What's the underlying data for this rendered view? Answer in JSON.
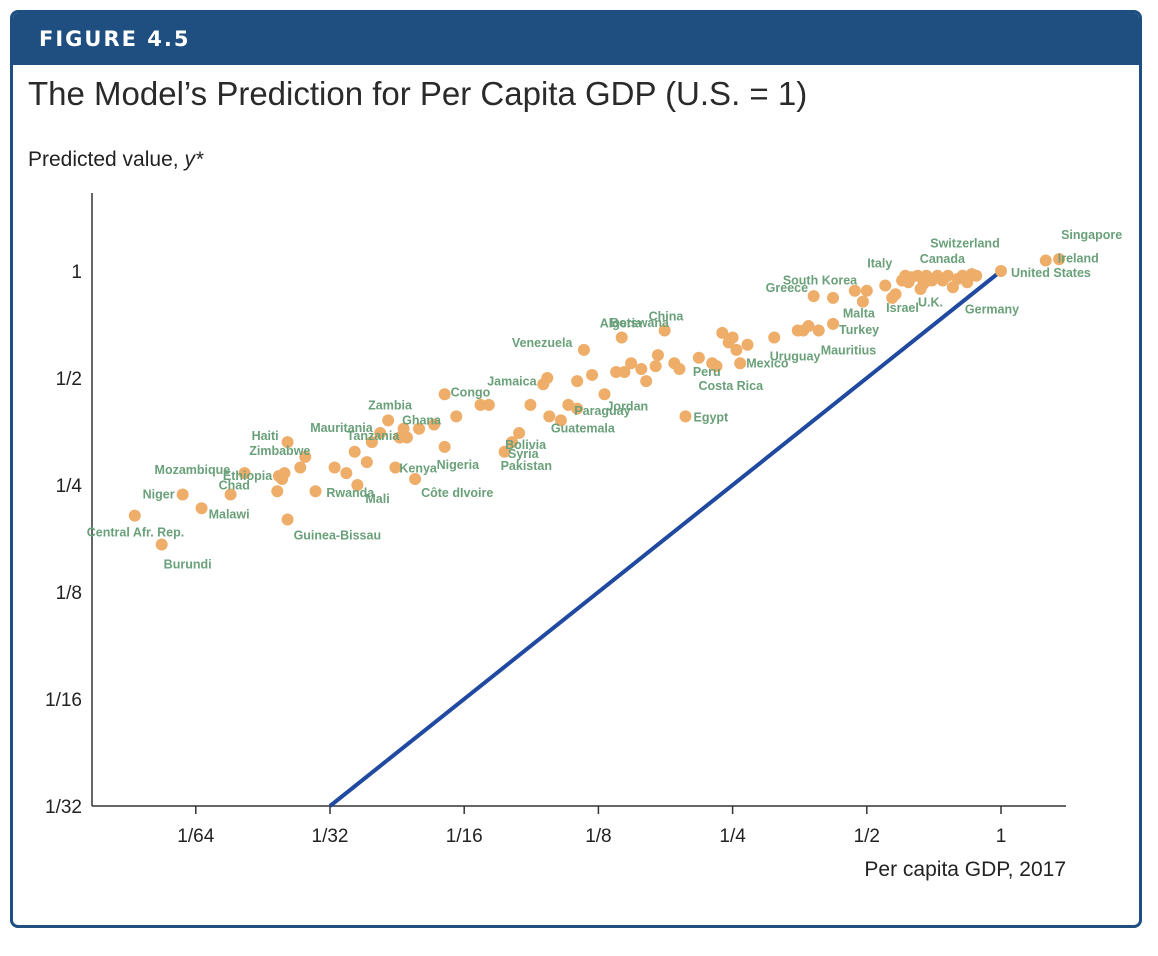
{
  "figure_label": "FIGURE 4.5",
  "colors": {
    "frame": "#1f4e80",
    "line": "#1f4aa0",
    "point": "#eead69",
    "label": "#6aa07a"
  },
  "chart_data": {
    "type": "scatter",
    "title": "The Model’s Prediction for Per Capita GDP (U.S. = 1)",
    "ylabel": "Predicted value, y*",
    "xlabel": "Per capita GDP, 2017",
    "scale": "log2",
    "xlim": [
      0.0085,
      1.4
    ],
    "ylim": [
      0.03125,
      1.6
    ],
    "x_ticks": [
      {
        "value": 0.015625,
        "label": "1/64"
      },
      {
        "value": 0.03125,
        "label": "1/32"
      },
      {
        "value": 0.0625,
        "label": "1/16"
      },
      {
        "value": 0.125,
        "label": "1/8"
      },
      {
        "value": 0.25,
        "label": "1/4"
      },
      {
        "value": 0.5,
        "label": "1/2"
      },
      {
        "value": 1,
        "label": "1"
      }
    ],
    "y_ticks": [
      {
        "value": 0.03125,
        "label": "1/32"
      },
      {
        "value": 0.0625,
        "label": "1/16"
      },
      {
        "value": 0.125,
        "label": "1/8"
      },
      {
        "value": 0.25,
        "label": "1/4"
      },
      {
        "value": 0.5,
        "label": "1/2"
      },
      {
        "value": 1,
        "label": "1"
      }
    ],
    "line": {
      "x": [
        0.03125,
        1
      ],
      "y": [
        0.03125,
        1
      ]
    },
    "points": [
      {
        "x": 1.35,
        "y": 1.08,
        "name": "Singapore"
      },
      {
        "x": 1.26,
        "y": 1.07,
        "name": "Ireland"
      },
      {
        "x": 1.0,
        "y": 1.0,
        "name": "United States"
      },
      {
        "x": 0.88,
        "y": 0.97,
        "name": "Switzerland"
      },
      {
        "x": 0.8,
        "y": 0.95,
        "name": "Canada"
      },
      {
        "x": 0.86,
        "y": 0.98,
        "name": ""
      },
      {
        "x": 0.84,
        "y": 0.93,
        "name": ""
      },
      {
        "x": 0.82,
        "y": 0.97,
        "name": ""
      },
      {
        "x": 0.78,
        "y": 0.9,
        "name": "Germany"
      },
      {
        "x": 0.76,
        "y": 0.97,
        "name": ""
      },
      {
        "x": 0.74,
        "y": 0.94,
        "name": ""
      },
      {
        "x": 0.72,
        "y": 0.97,
        "name": ""
      },
      {
        "x": 0.7,
        "y": 0.94,
        "name": "U.K."
      },
      {
        "x": 0.68,
        "y": 0.97,
        "name": ""
      },
      {
        "x": 0.67,
        "y": 0.92,
        "name": ""
      },
      {
        "x": 0.66,
        "y": 0.89,
        "name": ""
      },
      {
        "x": 0.65,
        "y": 0.97,
        "name": ""
      },
      {
        "x": 0.63,
        "y": 0.96,
        "name": ""
      },
      {
        "x": 0.62,
        "y": 0.93,
        "name": ""
      },
      {
        "x": 0.61,
        "y": 0.97,
        "name": "Italy"
      },
      {
        "x": 0.6,
        "y": 0.94,
        "name": ""
      },
      {
        "x": 0.58,
        "y": 0.86,
        "name": ""
      },
      {
        "x": 0.57,
        "y": 0.84,
        "name": "Israel"
      },
      {
        "x": 0.55,
        "y": 0.91,
        "name": ""
      },
      {
        "x": 0.5,
        "y": 0.88,
        "name": ""
      },
      {
        "x": 0.49,
        "y": 0.82,
        "name": "Malta"
      },
      {
        "x": 0.47,
        "y": 0.88,
        "name": "South Korea"
      },
      {
        "x": 0.42,
        "y": 0.84,
        "name": ""
      },
      {
        "x": 0.38,
        "y": 0.85,
        "name": "Greece"
      },
      {
        "x": 0.42,
        "y": 0.71,
        "name": "Turkey"
      },
      {
        "x": 0.39,
        "y": 0.68,
        "name": "Mauritius"
      },
      {
        "x": 0.37,
        "y": 0.7,
        "name": ""
      },
      {
        "x": 0.36,
        "y": 0.68,
        "name": ""
      },
      {
        "x": 0.35,
        "y": 0.68,
        "name": "Uruguay"
      },
      {
        "x": 0.31,
        "y": 0.65,
        "name": ""
      },
      {
        "x": 0.27,
        "y": 0.62,
        "name": ""
      },
      {
        "x": 0.26,
        "y": 0.55,
        "name": "Mexico"
      },
      {
        "x": 0.255,
        "y": 0.6,
        "name": ""
      },
      {
        "x": 0.25,
        "y": 0.65,
        "name": ""
      },
      {
        "x": 0.245,
        "y": 0.63,
        "name": ""
      },
      {
        "x": 0.237,
        "y": 0.67,
        "name": ""
      },
      {
        "x": 0.23,
        "y": 0.54,
        "name": "Costa Rica"
      },
      {
        "x": 0.225,
        "y": 0.55,
        "name": ""
      },
      {
        "x": 0.21,
        "y": 0.57,
        "name": "Peru"
      },
      {
        "x": 0.19,
        "y": 0.53,
        "name": ""
      },
      {
        "x": 0.185,
        "y": 0.55,
        "name": ""
      },
      {
        "x": 0.176,
        "y": 0.68,
        "name": "China"
      },
      {
        "x": 0.17,
        "y": 0.58,
        "name": "Botswana"
      },
      {
        "x": 0.168,
        "y": 0.54,
        "name": ""
      },
      {
        "x": 0.16,
        "y": 0.49,
        "name": ""
      },
      {
        "x": 0.156,
        "y": 0.53,
        "name": ""
      },
      {
        "x": 0.148,
        "y": 0.55,
        "name": ""
      },
      {
        "x": 0.143,
        "y": 0.52,
        "name": ""
      },
      {
        "x": 0.137,
        "y": 0.52,
        "name": ""
      },
      {
        "x": 0.141,
        "y": 0.65,
        "name": "Algeria"
      },
      {
        "x": 0.129,
        "y": 0.45,
        "name": "Jordan"
      },
      {
        "x": 0.121,
        "y": 0.51,
        "name": ""
      },
      {
        "x": 0.116,
        "y": 0.6,
        "name": "Venezuela"
      },
      {
        "x": 0.112,
        "y": 0.49,
        "name": ""
      },
      {
        "x": 0.112,
        "y": 0.41,
        "name": ""
      },
      {
        "x": 0.107,
        "y": 0.42,
        "name": "Paraguay"
      },
      {
        "x": 0.103,
        "y": 0.38,
        "name": "Guatemala"
      },
      {
        "x": 0.097,
        "y": 0.39,
        "name": ""
      },
      {
        "x": 0.096,
        "y": 0.5,
        "name": ""
      },
      {
        "x": 0.094,
        "y": 0.48,
        "name": "Jamaica"
      },
      {
        "x": 0.088,
        "y": 0.42,
        "name": ""
      },
      {
        "x": 0.083,
        "y": 0.35,
        "name": "Bolivia"
      },
      {
        "x": 0.08,
        "y": 0.33,
        "name": "Syria"
      },
      {
        "x": 0.077,
        "y": 0.31,
        "name": "Pakistan"
      },
      {
        "x": 0.071,
        "y": 0.42,
        "name": ""
      },
      {
        "x": 0.068,
        "y": 0.42,
        "name": ""
      },
      {
        "x": 0.196,
        "y": 0.39,
        "name": "Egypt"
      },
      {
        "x": 0.06,
        "y": 0.39,
        "name": ""
      },
      {
        "x": 0.0565,
        "y": 0.45,
        "name": "Congo"
      },
      {
        "x": 0.0565,
        "y": 0.32,
        "name": "Nigeria"
      },
      {
        "x": 0.0535,
        "y": 0.37,
        "name": "Ghana"
      },
      {
        "x": 0.0495,
        "y": 0.36,
        "name": ""
      },
      {
        "x": 0.0485,
        "y": 0.26,
        "name": "Côte dIvoire"
      },
      {
        "x": 0.0465,
        "y": 0.34,
        "name": ""
      },
      {
        "x": 0.0457,
        "y": 0.36,
        "name": ""
      },
      {
        "x": 0.0438,
        "y": 0.28,
        "name": "Kenya"
      },
      {
        "x": 0.0448,
        "y": 0.34,
        "name": ""
      },
      {
        "x": 0.0422,
        "y": 0.38,
        "name": "Zambia"
      },
      {
        "x": 0.0405,
        "y": 0.35,
        "name": "Mauritania"
      },
      {
        "x": 0.0378,
        "y": 0.29,
        "name": ""
      },
      {
        "x": 0.0388,
        "y": 0.33,
        "name": ""
      },
      {
        "x": 0.0355,
        "y": 0.31,
        "name": "Tanzania"
      },
      {
        "x": 0.036,
        "y": 0.25,
        "name": "Mali"
      },
      {
        "x": 0.034,
        "y": 0.27,
        "name": "Rwanda"
      },
      {
        "x": 0.032,
        "y": 0.28,
        "name": ""
      },
      {
        "x": 0.029,
        "y": 0.24,
        "name": ""
      },
      {
        "x": 0.0275,
        "y": 0.3,
        "name": "Zimbabwe"
      },
      {
        "x": 0.0268,
        "y": 0.28,
        "name": ""
      },
      {
        "x": 0.0251,
        "y": 0.33,
        "name": "Haiti"
      },
      {
        "x": 0.0247,
        "y": 0.27,
        "name": ""
      },
      {
        "x": 0.024,
        "y": 0.265,
        "name": "Ethiopia"
      },
      {
        "x": 0.0238,
        "y": 0.24,
        "name": ""
      },
      {
        "x": 0.0244,
        "y": 0.26,
        "name": ""
      },
      {
        "x": 0.0201,
        "y": 0.27,
        "name": "Mozambique"
      },
      {
        "x": 0.0251,
        "y": 0.2,
        "name": "Guinea-Bissau"
      },
      {
        "x": 0.0187,
        "y": 0.235,
        "name": "Chad"
      },
      {
        "x": 0.0161,
        "y": 0.215,
        "name": "Malawi"
      },
      {
        "x": 0.0146,
        "y": 0.235,
        "name": "Niger"
      },
      {
        "x": 0.0131,
        "y": 0.17,
        "name": "Burundi"
      },
      {
        "x": 0.0114,
        "y": 0.205,
        "name": "Central Afr. Rep."
      }
    ]
  }
}
